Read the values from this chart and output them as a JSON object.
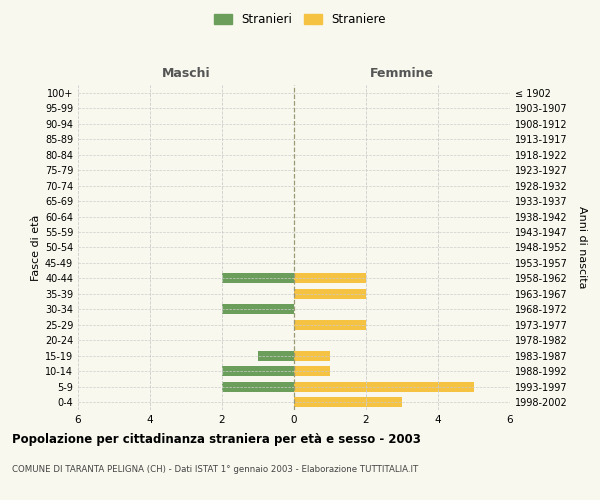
{
  "age_groups": [
    "100+",
    "95-99",
    "90-94",
    "85-89",
    "80-84",
    "75-79",
    "70-74",
    "65-69",
    "60-64",
    "55-59",
    "50-54",
    "45-49",
    "40-44",
    "35-39",
    "30-34",
    "25-29",
    "20-24",
    "15-19",
    "10-14",
    "5-9",
    "0-4"
  ],
  "birth_years": [
    "≤ 1902",
    "1903-1907",
    "1908-1912",
    "1913-1917",
    "1918-1922",
    "1923-1927",
    "1928-1932",
    "1933-1937",
    "1938-1942",
    "1943-1947",
    "1948-1952",
    "1953-1957",
    "1958-1962",
    "1963-1967",
    "1968-1972",
    "1973-1977",
    "1978-1982",
    "1983-1987",
    "1988-1992",
    "1993-1997",
    "1998-2002"
  ],
  "maschi": [
    0,
    0,
    0,
    0,
    0,
    0,
    0,
    0,
    0,
    0,
    0,
    0,
    2,
    0,
    2,
    0,
    0,
    1,
    2,
    2,
    0
  ],
  "femmine": [
    0,
    0,
    0,
    0,
    0,
    0,
    0,
    0,
    0,
    0,
    0,
    0,
    2,
    2,
    0,
    2,
    0,
    1,
    1,
    5,
    3
  ],
  "color_maschi": "#6a9e5a",
  "color_femmine": "#f5c242",
  "title": "Popolazione per cittadinanza straniera per età e sesso - 2003",
  "subtitle": "COMUNE DI TARANTA PELIGNA (CH) - Dati ISTAT 1° gennaio 2003 - Elaborazione TUTTITALIA.IT",
  "ylabel_left": "Fasce di età",
  "ylabel_right": "Anni di nascita",
  "xlabel_left": "Maschi",
  "xlabel_right": "Femmine",
  "legend_maschi": "Stranieri",
  "legend_femmine": "Straniere",
  "xlim": 6,
  "background_color": "#f8f8ee",
  "grid_color": "#cccccc"
}
